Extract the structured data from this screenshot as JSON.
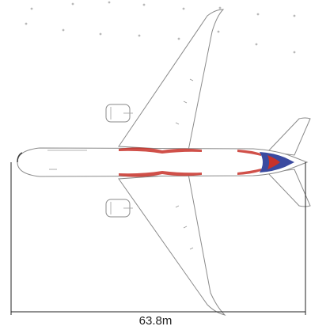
{
  "figure": {
    "length_label": "63.8m"
  },
  "colors": {
    "fuselage": "#ffffff",
    "outline": "#8a8a8a",
    "livery_red": "#c8322a",
    "livery_blue": "#3a4aa0",
    "dimension_line": "#222222",
    "star": "#b8b8b8"
  },
  "icons": {
    "aircraft": "airplane-top-view-icon"
  }
}
